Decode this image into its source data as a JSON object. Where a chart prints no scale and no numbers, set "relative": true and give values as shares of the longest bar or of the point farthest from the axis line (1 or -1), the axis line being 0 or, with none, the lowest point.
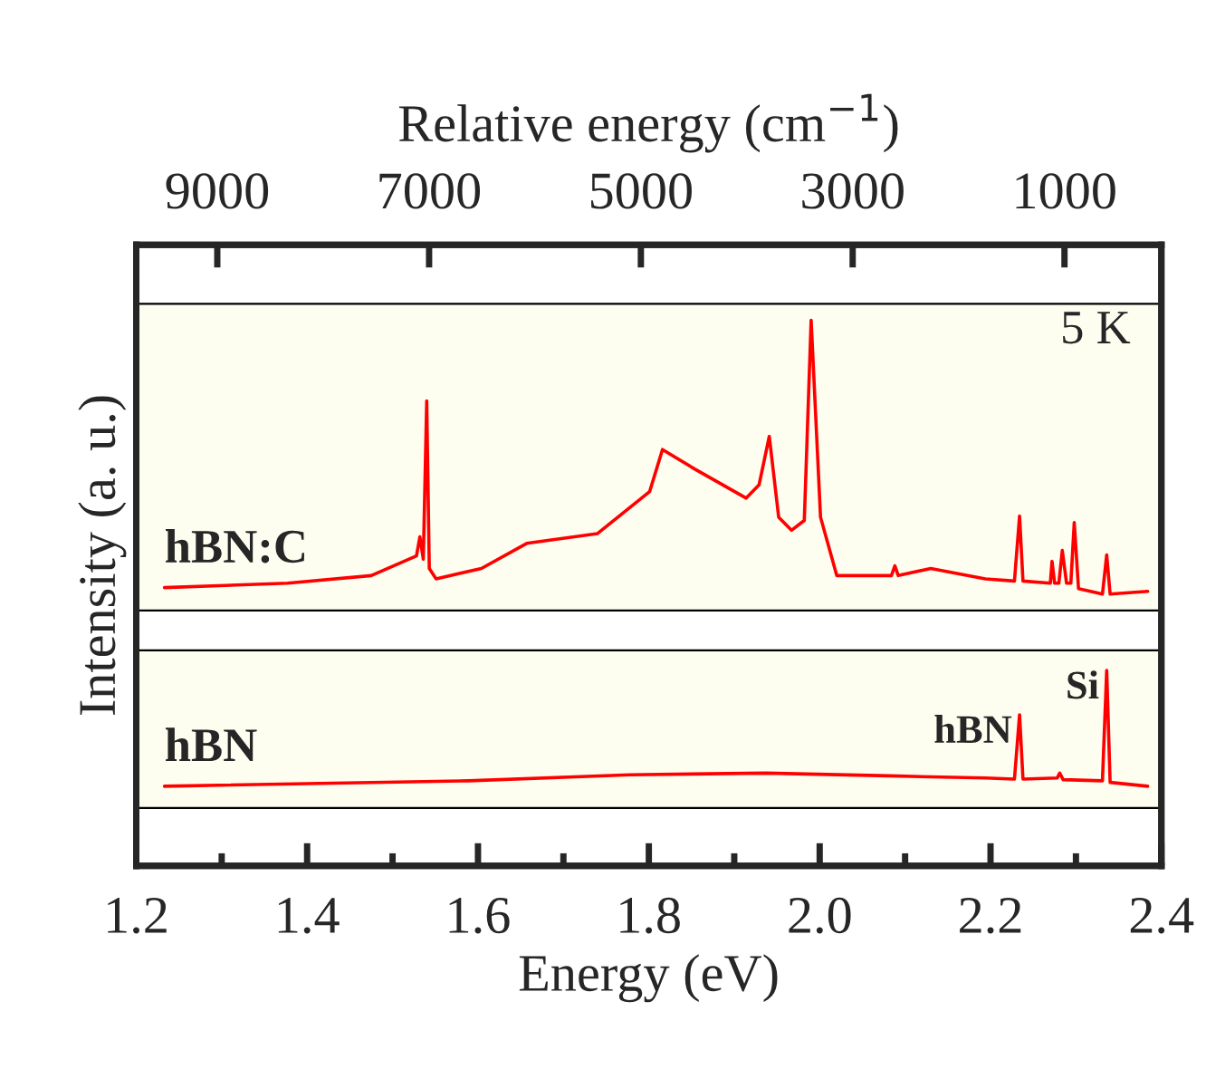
{
  "chart_data": {
    "type": "line",
    "relative": true,
    "xlabel": "Energy (eV)",
    "x2label": "Relative energy (cm$^{−1}$)",
    "ylabel": "Intensity (a. u.)",
    "xlim": [
      1.2,
      2.4
    ],
    "xticks": [
      1.2,
      {
        "value": 1.3,
        "label": null
      },
      1.4,
      {
        "value": 1.5,
        "label": null
      },
      1.6,
      {
        "value": 1.7,
        "label": null
      },
      1.8,
      {
        "value": 1.9,
        "label": null
      },
      {
        "value": 2.0,
        "label": "2.0"
      },
      {
        "value": 2.1,
        "label": null
      },
      2.2,
      {
        "value": 2.3,
        "label": null
      },
      2.4
    ],
    "x2lim": [
      9765,
      85
    ],
    "x2ticks": [
      9000,
      7000,
      5000,
      3000,
      1000
    ],
    "line_style": "solid",
    "series": [
      {
        "name": "hBN:C",
        "color": "#ff0000",
        "x": [
          1.233,
          1.377,
          1.475,
          1.528,
          1.532,
          1.536,
          1.54,
          1.543,
          1.551,
          1.604,
          1.657,
          1.74,
          1.801,
          1.816,
          1.854,
          1.914,
          1.929,
          1.941,
          1.952,
          1.967,
          1.982,
          1.99,
          2.001,
          2.02,
          2.084,
          2.088,
          2.092,
          2.13,
          2.194,
          2.228,
          2.234,
          2.238,
          2.27,
          2.272,
          2.275,
          2.28,
          2.284,
          2.289,
          2.294,
          2.298,
          2.303,
          2.331,
          2.336,
          2.34,
          2.384
        ],
        "values": [
          0.51,
          0.518,
          0.532,
          0.568,
          0.603,
          0.562,
          0.852,
          0.545,
          0.526,
          0.545,
          0.591,
          0.609,
          0.686,
          0.763,
          0.727,
          0.674,
          0.698,
          0.787,
          0.639,
          0.615,
          0.633,
          1.0,
          0.639,
          0.532,
          0.532,
          0.55,
          0.532,
          0.545,
          0.526,
          0.522,
          0.641,
          0.522,
          0.518,
          0.558,
          0.518,
          0.518,
          0.578,
          0.518,
          0.518,
          0.629,
          0.508,
          0.498,
          0.57,
          0.498,
          0.503
        ]
      },
      {
        "name": "hBN",
        "color": "#ff0000",
        "x": [
          1.233,
          1.589,
          1.778,
          1.937,
          2.081,
          2.194,
          2.228,
          2.234,
          2.238,
          2.278,
          2.281,
          2.285,
          2.331,
          2.336,
          2.34,
          2.384
        ],
        "values": [
          0.146,
          0.156,
          0.167,
          0.17,
          0.165,
          0.161,
          0.159,
          0.277,
          0.159,
          0.161,
          0.17,
          0.158,
          0.156,
          0.358,
          0.153,
          0.146
        ]
      }
    ],
    "bands": [
      {
        "axis": "y",
        "from": 0.468,
        "to": 1.03,
        "color": "#fefef0"
      },
      {
        "axis": "y",
        "from": 0.106,
        "to": 0.395,
        "color": "#fefef0"
      }
    ],
    "annotations": [
      "5 K",
      {
        "text": "hBN",
        "x": 2.234,
        "y": 0.277
      },
      {
        "text": "Si",
        "x": 2.336,
        "y": 0.358
      }
    ]
  }
}
